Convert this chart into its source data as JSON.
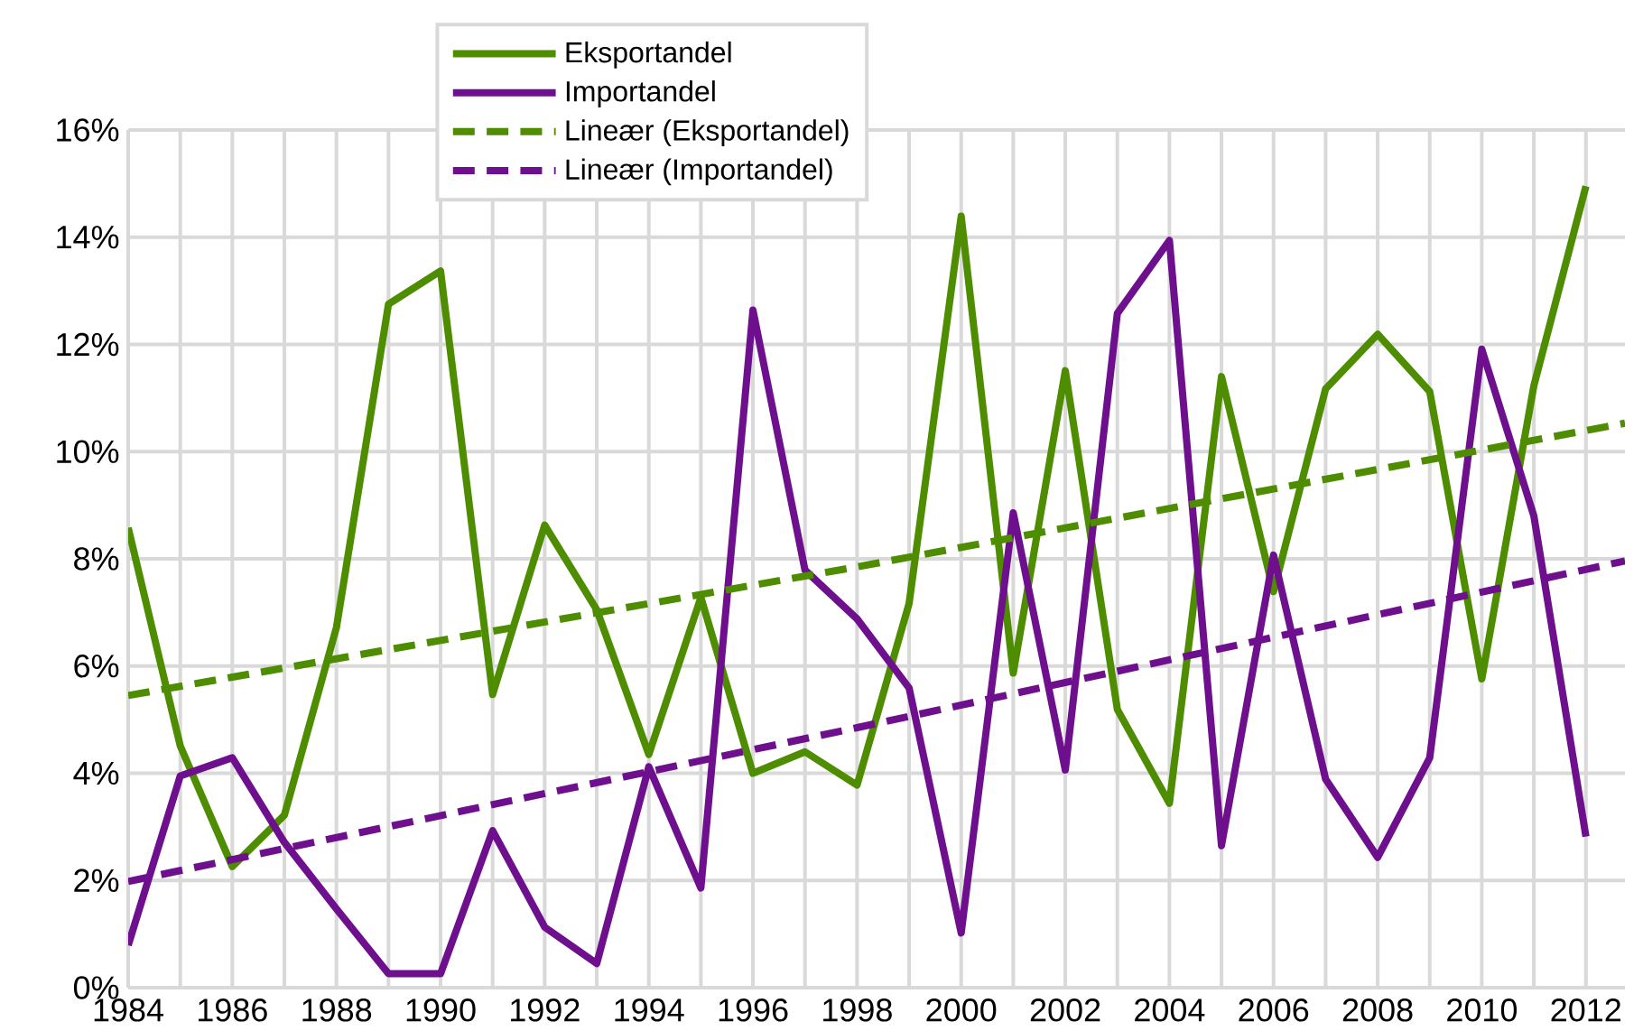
{
  "chart_data": {
    "type": "line",
    "x": [
      1984,
      1985,
      1986,
      1987,
      1988,
      1989,
      1990,
      1991,
      1992,
      1993,
      1994,
      1995,
      1996,
      1997,
      1998,
      1999,
      2000,
      2001,
      2002,
      2003,
      2004,
      2005,
      2006,
      2007,
      2008,
      2009,
      2010,
      2011,
      2012
    ],
    "series": [
      {
        "name": "Eksportandel",
        "color": "#4e8c00",
        "values": [
          8.58,
          4.51,
          2.26,
          3.22,
          6.72,
          12.75,
          13.37,
          5.47,
          8.63,
          7.05,
          4.35,
          7.28,
          4.0,
          4.4,
          3.78,
          7.17,
          14.39,
          5.87,
          11.51,
          5.19,
          3.44,
          11.4,
          7.39,
          11.17,
          12.19,
          11.12,
          5.76,
          11.23,
          14.95
        ]
      },
      {
        "name": "Importandel",
        "color": "#6e0f8e",
        "values": [
          0.79,
          3.95,
          4.29,
          2.71,
          1.47,
          0.26,
          0.26,
          2.93,
          1.13,
          0.45,
          4.12,
          1.86,
          12.64,
          7.79,
          6.88,
          5.59,
          1.02,
          8.86,
          4.06,
          12.58,
          13.94,
          2.65,
          8.07,
          3.89,
          2.43,
          4.29,
          11.91,
          8.8,
          2.82
        ]
      },
      {
        "name": "Lineær (Eksportandel)",
        "color": "#4e8c00",
        "line_style": "dashed",
        "x": [
          1984,
          1998,
          2012.75
        ],
        "values": [
          5.45,
          7.85,
          10.53
        ]
      },
      {
        "name": "Lineær (Importandel)",
        "color": "#6e0f8e",
        "line_style": "dashed",
        "x": [
          1984,
          1998,
          2012.75
        ],
        "values": [
          1.98,
          4.85,
          7.96
        ]
      }
    ],
    "xlim": [
      1984,
      2012.75
    ],
    "xticks": [
      1984,
      {
        "value": 1985,
        "label": null
      },
      1986,
      {
        "value": 1987,
        "label": null
      },
      1988,
      {
        "value": 1989,
        "label": null
      },
      1990,
      {
        "value": 1991,
        "label": null
      },
      1992,
      {
        "value": 1993,
        "label": null
      },
      1994,
      {
        "value": 1995,
        "label": null
      },
      1996,
      {
        "value": 1997,
        "label": null
      },
      1998,
      {
        "value": 1999,
        "label": null
      },
      2000,
      {
        "value": 2001,
        "label": null
      },
      2002,
      {
        "value": 2003,
        "label": null
      },
      2004,
      {
        "value": 2005,
        "label": null
      },
      2006,
      {
        "value": 2007,
        "label": null
      },
      2008,
      {
        "value": 2009,
        "label": null
      },
      2010,
      {
        "value": 2011,
        "label": null
      },
      2012
    ],
    "ylim": [
      0,
      16
    ],
    "yticks": [
      {
        "value": 0,
        "label": "0%"
      },
      {
        "value": 2,
        "label": "2%"
      },
      {
        "value": 4,
        "label": "4%"
      },
      {
        "value": 6,
        "label": "6%"
      },
      {
        "value": 8,
        "label": "8%"
      },
      {
        "value": 10,
        "label": "10%"
      },
      {
        "value": 12,
        "label": "12%"
      },
      {
        "value": 14,
        "label": "14%"
      },
      {
        "value": 16,
        "label": "16%"
      }
    ],
    "grid": true,
    "legend": "top",
    "marker": "none",
    "line_style": "solid"
  }
}
